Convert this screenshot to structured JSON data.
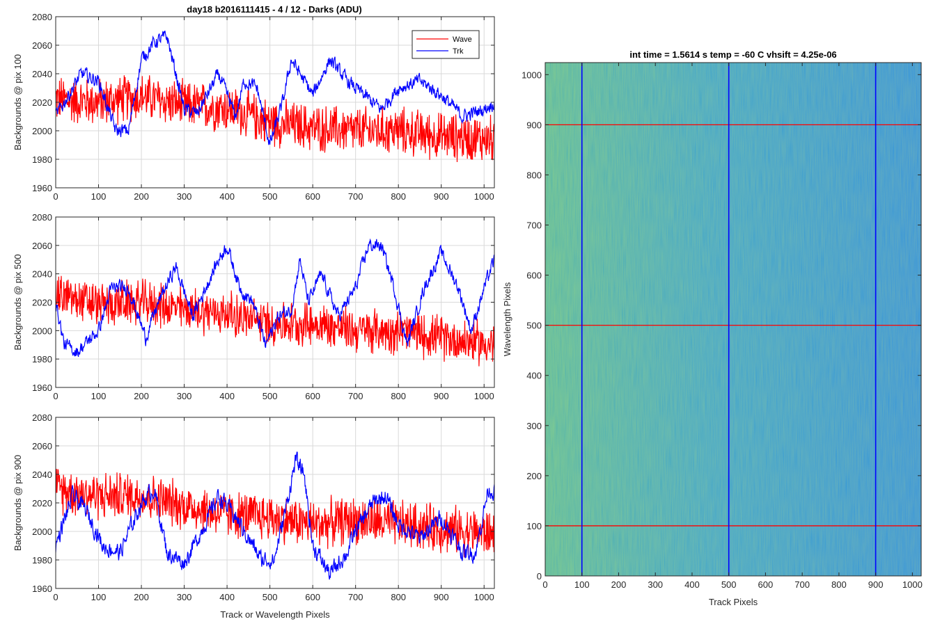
{
  "figure": {
    "title": "day18 b2016111415 - 4 / 12 - Darks (ADU)"
  },
  "colors": {
    "wave": "#ff0000",
    "trk": "#0000ff",
    "grid": "#d9d9d9",
    "axis": "#262626",
    "colormap_low": "#1f6fd6",
    "colormap_high": "#c6d93c"
  },
  "chart_data": [
    {
      "type": "line",
      "title": "day18 b2016111415 - 4 / 12 - Darks (ADU)",
      "xlabel": "",
      "ylabel": "Backgrounds @ pix 100",
      "xlim": [
        0,
        1024
      ],
      "ylim": [
        1960,
        2080
      ],
      "xticks": [
        0,
        100,
        200,
        300,
        400,
        500,
        600,
        700,
        800,
        900,
        1000
      ],
      "yticks": [
        1960,
        1980,
        2000,
        2020,
        2040,
        2060,
        2080
      ],
      "grid": true,
      "legend": {
        "position": "top-right",
        "entries": [
          "Wave",
          "Trk"
        ]
      },
      "series": [
        {
          "name": "Wave",
          "color": "#ff0000",
          "noise": 14,
          "points": [
            [
              0,
              2022
            ],
            [
              100,
              2020
            ],
            [
              200,
              2024
            ],
            [
              300,
              2018
            ],
            [
              400,
              2016
            ],
            [
              500,
              2006
            ],
            [
              600,
              2002
            ],
            [
              700,
              2000
            ],
            [
              800,
              2000
            ],
            [
              900,
              1996
            ],
            [
              1024,
              1994
            ]
          ]
        },
        {
          "name": "Trk",
          "color": "#0000ff",
          "noise": 4,
          "points": [
            [
              0,
              2010
            ],
            [
              30,
              2025
            ],
            [
              60,
              2040
            ],
            [
              100,
              2035
            ],
            [
              140,
              2000
            ],
            [
              170,
              2000
            ],
            [
              200,
              2050
            ],
            [
              230,
              2062
            ],
            [
              260,
              2066
            ],
            [
              300,
              2015
            ],
            [
              330,
              2012
            ],
            [
              380,
              2040
            ],
            [
              420,
              2010
            ],
            [
              440,
              2035
            ],
            [
              470,
              2030
            ],
            [
              500,
              1990
            ],
            [
              530,
              2020
            ],
            [
              550,
              2050
            ],
            [
              600,
              2025
            ],
            [
              640,
              2050
            ],
            [
              680,
              2035
            ],
            [
              700,
              2030
            ],
            [
              760,
              2015
            ],
            [
              800,
              2030
            ],
            [
              850,
              2035
            ],
            [
              900,
              2025
            ],
            [
              950,
              2010
            ],
            [
              1000,
              2015
            ],
            [
              1024,
              2020
            ]
          ]
        }
      ]
    },
    {
      "type": "line",
      "xlabel": "",
      "ylabel": "Backgrounds @ pix 500",
      "xlim": [
        0,
        1024
      ],
      "ylim": [
        1960,
        2080
      ],
      "xticks": [
        0,
        100,
        200,
        300,
        400,
        500,
        600,
        700,
        800,
        900,
        1000
      ],
      "yticks": [
        1960,
        1980,
        2000,
        2020,
        2040,
        2060,
        2080
      ],
      "grid": true,
      "series": [
        {
          "name": "Wave",
          "color": "#ff0000",
          "noise": 13,
          "points": [
            [
              0,
              2025
            ],
            [
              100,
              2018
            ],
            [
              200,
              2020
            ],
            [
              300,
              2015
            ],
            [
              400,
              2012
            ],
            [
              500,
              2005
            ],
            [
              600,
              2005
            ],
            [
              700,
              2000
            ],
            [
              800,
              2000
            ],
            [
              900,
              1995
            ],
            [
              1024,
              1990
            ]
          ]
        },
        {
          "name": "Trk",
          "color": "#0000ff",
          "noise": 4,
          "points": [
            [
              0,
              2020
            ],
            [
              20,
              1990
            ],
            [
              50,
              1985
            ],
            [
              100,
              2000
            ],
            [
              130,
              2030
            ],
            [
              170,
              2030
            ],
            [
              210,
              1995
            ],
            [
              240,
              2020
            ],
            [
              280,
              2045
            ],
            [
              320,
              2010
            ],
            [
              380,
              2050
            ],
            [
              400,
              2060
            ],
            [
              430,
              2030
            ],
            [
              460,
              2020
            ],
            [
              490,
              1990
            ],
            [
              520,
              2010
            ],
            [
              550,
              2015
            ],
            [
              570,
              2050
            ],
            [
              590,
              2020
            ],
            [
              620,
              2040
            ],
            [
              660,
              2010
            ],
            [
              700,
              2030
            ],
            [
              730,
              2060
            ],
            [
              760,
              2060
            ],
            [
              790,
              2030
            ],
            [
              820,
              1990
            ],
            [
              860,
              2030
            ],
            [
              900,
              2055
            ],
            [
              940,
              2030
            ],
            [
              970,
              2000
            ],
            [
              1000,
              2030
            ],
            [
              1024,
              2050
            ]
          ]
        }
      ]
    },
    {
      "type": "line",
      "xlabel": "Track or Wavelength Pixels",
      "ylabel": "Backgrounds @ pix 900",
      "xlim": [
        0,
        1024
      ],
      "ylim": [
        1960,
        2080
      ],
      "xticks": [
        0,
        100,
        200,
        300,
        400,
        500,
        600,
        700,
        800,
        900,
        1000
      ],
      "yticks": [
        1960,
        1980,
        2000,
        2020,
        2040,
        2060,
        2080
      ],
      "grid": true,
      "series": [
        {
          "name": "Wave",
          "color": "#ff0000",
          "noise": 14,
          "points": [
            [
              0,
              2030
            ],
            [
              100,
              2025
            ],
            [
              200,
              2025
            ],
            [
              300,
              2018
            ],
            [
              400,
              2012
            ],
            [
              500,
              2010
            ],
            [
              600,
              2005
            ],
            [
              700,
              2008
            ],
            [
              800,
              2005
            ],
            [
              900,
              2002
            ],
            [
              1024,
              1998
            ]
          ]
        },
        {
          "name": "Trk",
          "color": "#0000ff",
          "noise": 5,
          "points": [
            [
              0,
              1990
            ],
            [
              40,
              2025
            ],
            [
              70,
              2015
            ],
            [
              110,
              1990
            ],
            [
              150,
              1985
            ],
            [
              200,
              2020
            ],
            [
              230,
              2030
            ],
            [
              260,
              1985
            ],
            [
              300,
              1978
            ],
            [
              340,
              2000
            ],
            [
              380,
              2025
            ],
            [
              420,
              2010
            ],
            [
              460,
              1990
            ],
            [
              480,
              1980
            ],
            [
              510,
              1980
            ],
            [
              540,
              2020
            ],
            [
              560,
              2050
            ],
            [
              580,
              2040
            ],
            [
              600,
              1990
            ],
            [
              640,
              1970
            ],
            [
              680,
              1985
            ],
            [
              700,
              2000
            ],
            [
              740,
              2020
            ],
            [
              770,
              2025
            ],
            [
              800,
              2005
            ],
            [
              850,
              1995
            ],
            [
              900,
              2010
            ],
            [
              950,
              1985
            ],
            [
              980,
              1985
            ],
            [
              1010,
              2030
            ],
            [
              1024,
              2028
            ]
          ]
        }
      ]
    },
    {
      "type": "heatmap",
      "title": "int time = 1.5614 s    temp = -60 C    vhsift = 4.25e-06",
      "xlabel": "Track Pixels",
      "ylabel": "Wavelength Pixels",
      "xlim": [
        0,
        1024
      ],
      "ylim": [
        0,
        1024
      ],
      "xticks": [
        0,
        100,
        200,
        300,
        400,
        500,
        600,
        700,
        800,
        900,
        1000
      ],
      "yticks": [
        0,
        100,
        200,
        300,
        400,
        500,
        600,
        700,
        800,
        900,
        1000
      ],
      "colormap": "parula",
      "horizontal_markers": {
        "color": "#ff0000",
        "y": [
          100,
          500,
          900
        ]
      },
      "vertical_markers": {
        "color": "#0000ff",
        "x": [
          100,
          500,
          900
        ]
      }
    }
  ]
}
